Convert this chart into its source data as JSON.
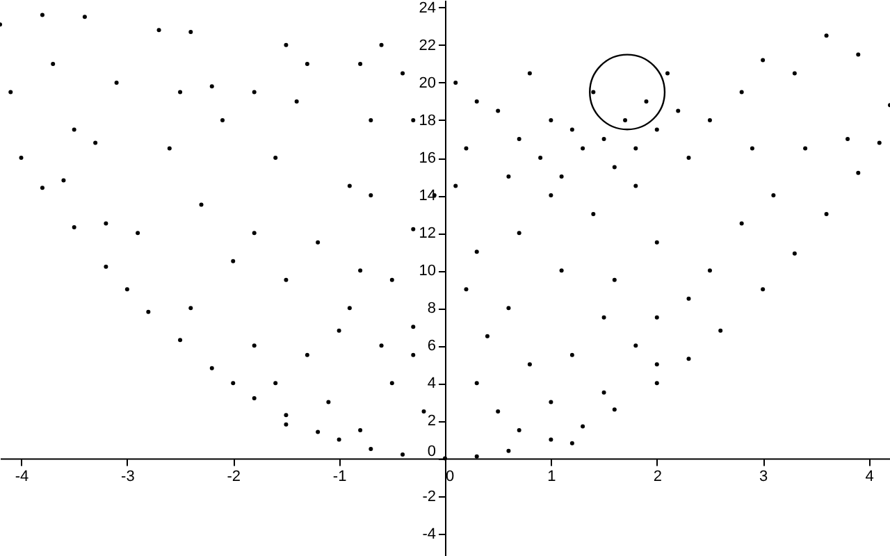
{
  "chart_data": {
    "type": "scatter",
    "xlim": [
      -4.2,
      4.2
    ],
    "ylim": [
      -5.2,
      24.4
    ],
    "xticks": [
      -4,
      -3,
      -2,
      -1,
      0,
      1,
      2,
      3,
      4
    ],
    "yticks": [
      -4,
      -2,
      0,
      2,
      4,
      6,
      8,
      10,
      12,
      14,
      16,
      18,
      20,
      22,
      24
    ],
    "grid": false,
    "marker": "circle",
    "series": [
      {
        "type": "scatter",
        "color": "#000000",
        "x": [
          -4,
          -3.8,
          -3.5,
          -3.2,
          -3,
          -2.8,
          -2.5,
          -2.2,
          -2,
          -1.8,
          -1.5,
          -1.2,
          -1,
          -0.7,
          -0.4,
          0,
          0.3,
          0.6,
          1,
          1.3,
          1.6,
          2,
          2.3,
          2.6,
          3,
          3.3,
          3.6,
          3.9,
          4.1,
          -4.2,
          -3.8,
          -3.4,
          -3.7,
          -4.1,
          -3.5,
          -3.3,
          -3.1,
          -2.7,
          -2.4,
          -2.5,
          -2.2,
          -2.1,
          -1.8,
          -1.5,
          -1.4,
          -1.3,
          -0.8,
          -0.6,
          -0.4,
          -0.3,
          -0.7,
          -0.7,
          -0.9,
          -1.6,
          -2.6,
          -3.2,
          -3.6,
          -2.9,
          -2.3,
          -1.8,
          -1.2,
          -0.8,
          -0.3,
          -0.1,
          -2,
          -1.5,
          -0.9,
          -0.3,
          -1,
          -0.6,
          -1.3,
          -1.8,
          -2.4,
          -1.6,
          -1.1,
          -0.5,
          -0.2,
          -0.8,
          -1.5,
          -0.3,
          -0.5,
          0.1,
          0.3,
          0.5,
          0.7,
          0.8,
          0.9,
          1,
          1.1,
          1.2,
          1.3,
          1.4,
          1.5,
          1.6,
          1.7,
          1.8,
          1.9,
          2,
          2.1,
          2.2,
          2.3,
          1,
          1.4,
          1.8,
          0.6,
          0.2,
          0.1,
          2.5,
          2.8,
          3,
          3.3,
          3.6,
          3.9,
          4.2,
          3.8,
          3.4,
          2.9,
          3.1,
          2.8,
          2.5,
          2,
          1.6,
          1.1,
          0.7,
          0.3,
          0.2,
          0.6,
          1.5,
          2,
          2.3,
          1.8,
          1.2,
          0.8,
          0.3,
          0.5,
          1,
          1.5,
          2,
          0.4,
          1.2,
          0.7
        ],
        "values": [
          16,
          14.4,
          12.3,
          10.2,
          9,
          7.8,
          6.3,
          4.8,
          4,
          3.2,
          2.3,
          1.4,
          1,
          0.5,
          0.2,
          0,
          0.1,
          0.4,
          1,
          1.7,
          2.6,
          4,
          5.3,
          6.8,
          9,
          10.9,
          13,
          15.2,
          16.8,
          23.1,
          23.6,
          23.5,
          21,
          19.5,
          17.5,
          16.8,
          20,
          22.8,
          22.7,
          19.5,
          19.8,
          18,
          19.5,
          22,
          19,
          21,
          21,
          22,
          20.5,
          18,
          18,
          14,
          14.5,
          16,
          16.5,
          12.5,
          14.8,
          12,
          13.5,
          12,
          11.5,
          10,
          12.2,
          14,
          10.5,
          9.5,
          8,
          7,
          6.8,
          6,
          5.5,
          6,
          8,
          4,
          3,
          4,
          2.5,
          1.5,
          1.8,
          5.5,
          9.5,
          20,
          19,
          18.5,
          17,
          20.5,
          16,
          18,
          15,
          17.5,
          16.5,
          19.5,
          17,
          15.5,
          18,
          16.5,
          19,
          17.5,
          20.5,
          18.5,
          16,
          14,
          13,
          14.5,
          15,
          16.5,
          14.5,
          18,
          19.5,
          21.2,
          20.5,
          22.5,
          21.5,
          18.8,
          17,
          16.5,
          16.5,
          14,
          12.5,
          10,
          11.5,
          9.5,
          10,
          12,
          11,
          9,
          8,
          7.5,
          7.5,
          8.5,
          6,
          5.5,
          5,
          4,
          2.5,
          3,
          3.5,
          5,
          6.5,
          0.8,
          1.5
        ]
      },
      {
        "type": "bubble",
        "color": "#000000",
        "x": [
          1.72
        ],
        "values": [
          19.5
        ],
        "sizes": [
          1
        ]
      }
    ]
  }
}
